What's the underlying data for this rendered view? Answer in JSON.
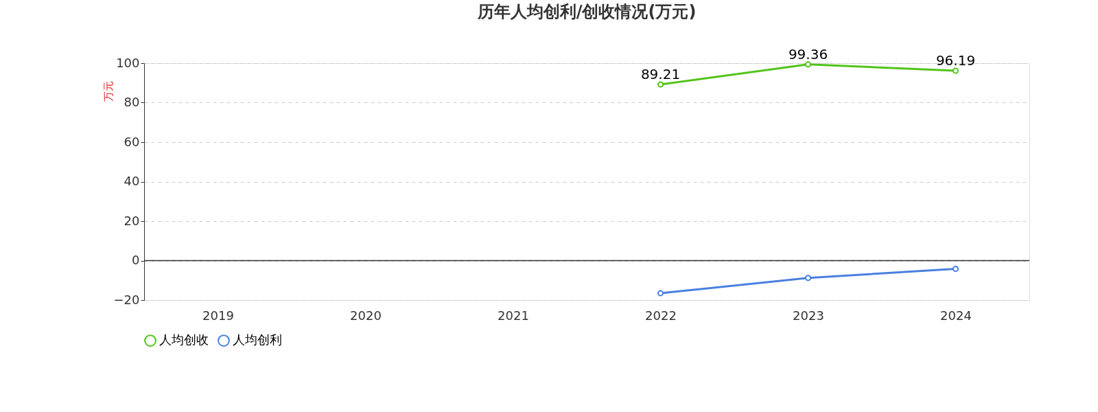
{
  "chart_data": {
    "type": "line",
    "title": "历年人均创利/创收情况(万元)",
    "ylabel": "万元",
    "categories": [
      "2019",
      "2020",
      "2021",
      "2022",
      "2023",
      "2024"
    ],
    "series": [
      {
        "name": "人均创收",
        "color": "#52c41a",
        "values": [
          null,
          null,
          null,
          89.21,
          99.36,
          96.19
        ],
        "value_labels": [
          null,
          null,
          null,
          "89.21",
          "99.36",
          "96.19"
        ]
      },
      {
        "name": "人均创利",
        "color": "#4a7fe0",
        "values": [
          null,
          null,
          null,
          -16.5,
          -8.8,
          -4.2
        ]
      }
    ],
    "ylim": [
      -20,
      100
    ],
    "yticks": [
      -20,
      0,
      20,
      40,
      60,
      80,
      100
    ],
    "grid": "y",
    "legend": "bottom",
    "marker": "circle",
    "line_style": "solid"
  }
}
